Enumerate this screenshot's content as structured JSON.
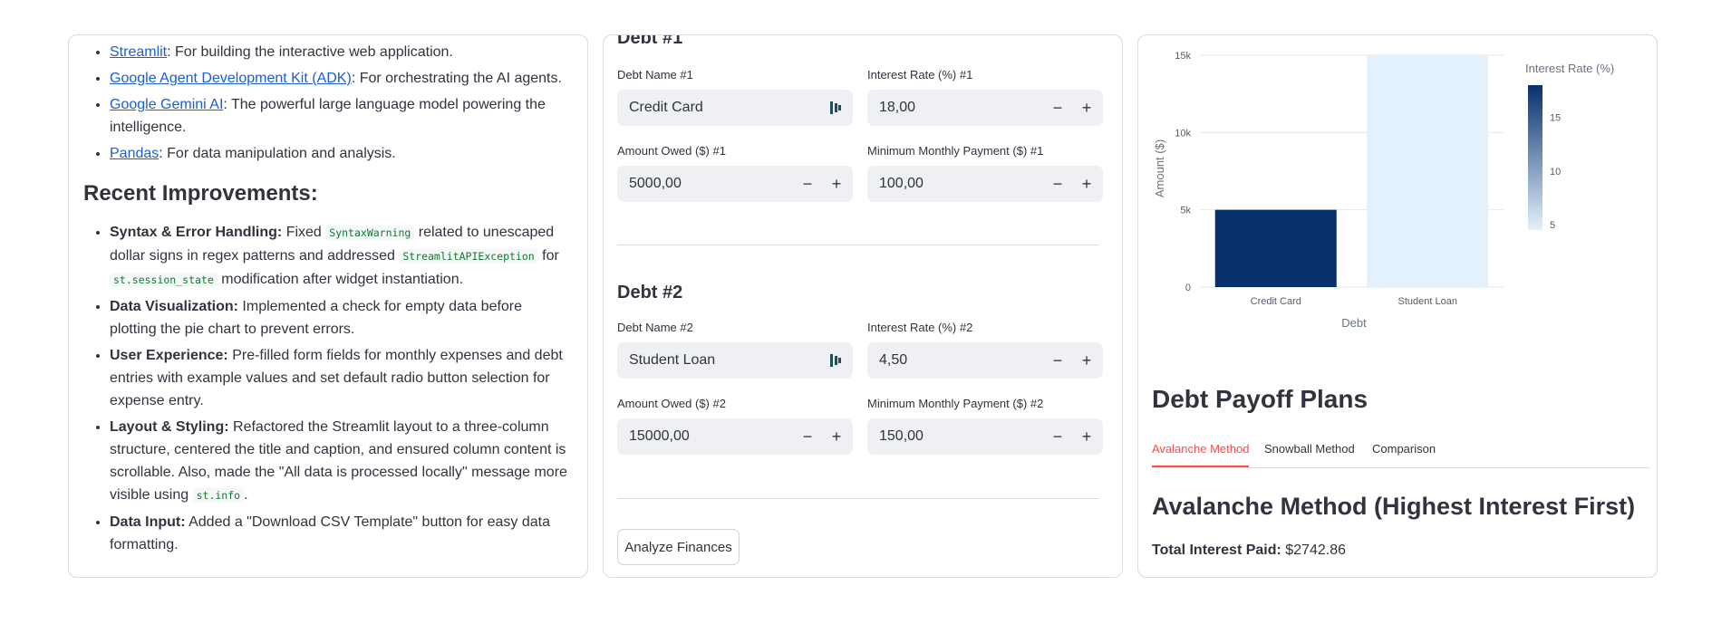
{
  "left": {
    "tech_items": [
      {
        "link": "Streamlit",
        "text": ": For building the interactive web application."
      },
      {
        "link": "Google Agent Development Kit (ADK)",
        "text": ": For orchestrating the AI agents."
      },
      {
        "link": "Google Gemini AI",
        "text": ": The powerful large language model powering the intelligence."
      },
      {
        "link": "Pandas",
        "text": ": For data manipulation and analysis."
      }
    ],
    "improvements_heading": "Recent Improvements:",
    "improvements": {
      "syntax": {
        "title": "Syntax & Error Handling:",
        "t1": "Fixed",
        "code1": "SyntaxWarning",
        "t2": "related to unescaped dollar signs in regex patterns and addressed",
        "code2": "StreamlitAPIException",
        "t3": "for",
        "code3": "st.session_state",
        "t4": "modification after widget instantiation."
      },
      "dataviz": {
        "title": "Data Visualization:",
        "text": "Implemented a check for empty data before plotting the pie chart to prevent errors."
      },
      "ux": {
        "title": "User Experience:",
        "text": "Pre-filled form fields for monthly expenses and debt entries with example values and set default radio button selection for expense entry."
      },
      "layout": {
        "title": "Layout & Styling:",
        "text": "Refactored the Streamlit layout to a three-column structure, centered the title and caption, and ensured column content is scrollable. Also, made the \"All data is processed locally\" message more visible using",
        "code": "st.info",
        "end": "."
      },
      "input": {
        "title": "Data Input:",
        "text": "Added a \"Download CSV Template\" button for easy data formatting."
      }
    }
  },
  "middle": {
    "debt1": {
      "title": "Debt #1",
      "name_label": "Debt Name #1",
      "name_value": "Credit Card",
      "rate_label": "Interest Rate (%) #1",
      "rate_value": "18,00",
      "owed_label": "Amount Owed ($) #1",
      "owed_value": "5000,00",
      "min_label": "Minimum Monthly Payment ($) #1",
      "min_value": "100,00"
    },
    "debt2": {
      "title": "Debt #2",
      "name_label": "Debt Name #2",
      "name_value": "Student Loan",
      "rate_label": "Interest Rate (%) #2",
      "rate_value": "4,50",
      "owed_label": "Amount Owed ($) #2",
      "owed_value": "15000,00",
      "min_label": "Minimum Monthly Payment ($) #2",
      "min_value": "150,00"
    },
    "minus": "−",
    "plus": "+",
    "analyze_button": "Analyze Finances"
  },
  "chart_data": {
    "type": "bar",
    "categories": [
      "Credit Card",
      "Student Loan"
    ],
    "values": [
      5000,
      15000
    ],
    "color_values": [
      18,
      4.5
    ],
    "xlabel": "Debt",
    "ylabel": "Amount ($)",
    "ylim": [
      0,
      15000
    ],
    "y_ticks": [
      {
        "value": 0,
        "label": "0"
      },
      {
        "value": 5000,
        "label": "5k"
      },
      {
        "value": 10000,
        "label": "10k"
      },
      {
        "value": 15000,
        "label": "15k"
      }
    ],
    "colorbar": {
      "title": "Interest Rate (%)",
      "range": [
        4.5,
        18
      ],
      "ticks": [
        {
          "value": 15,
          "label": "15"
        },
        {
          "value": 10,
          "label": "10"
        },
        {
          "value": 5,
          "label": "5"
        }
      ],
      "color_low": "#e3f1fc",
      "color_high": "#08306b"
    },
    "grid": true
  },
  "right": {
    "plans_heading": "Debt Payoff Plans",
    "tabs": [
      "Avalanche Method",
      "Snowball Method",
      "Comparison"
    ],
    "active_tab_color": "#ff4b4b",
    "avalanche_heading": "Avalanche Method (Highest Interest First)",
    "total_label": "Total Interest Paid:",
    "total_value": "$2742.86"
  }
}
